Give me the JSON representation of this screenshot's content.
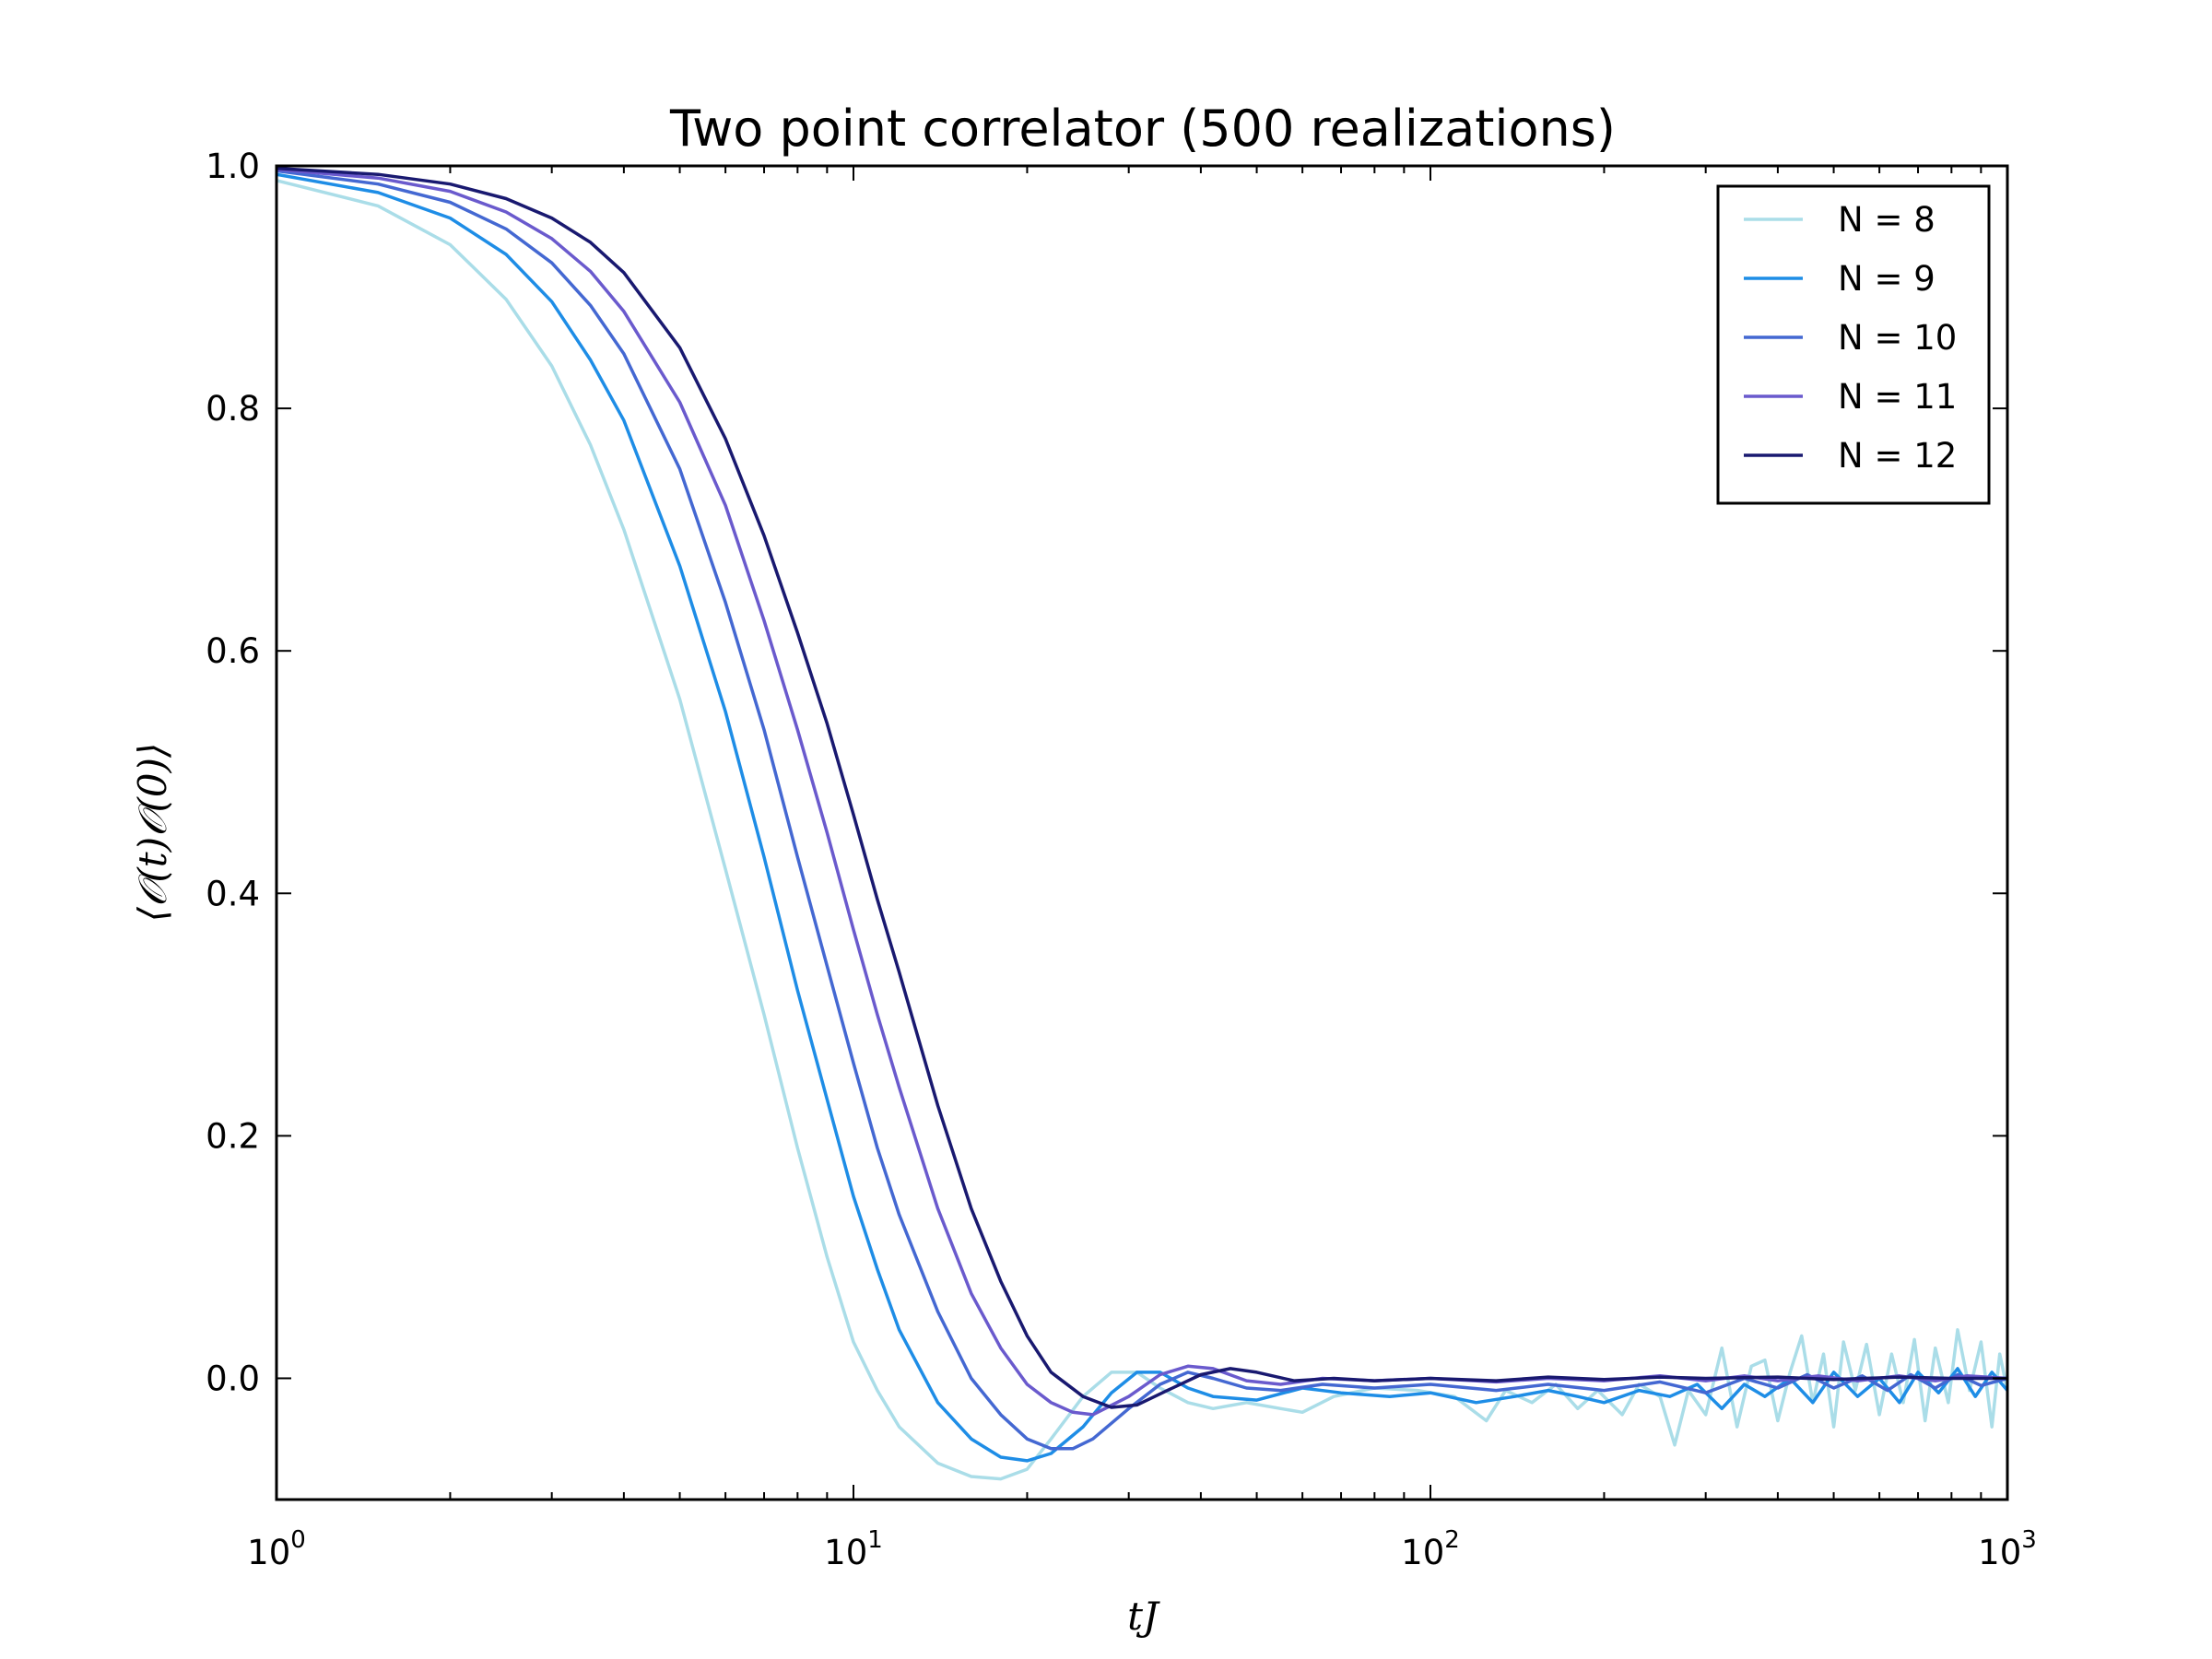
{
  "chart_data": {
    "type": "line",
    "title": "Two point correlator (500 realizations)",
    "xlabel": "tJ",
    "ylabel": "⟨𝒪(t)𝒪(0)⟩",
    "xscale": "log",
    "xlim": [
      1,
      1000
    ],
    "ylim": [
      -0.1,
      1.0
    ],
    "xticks": [
      {
        "value": 1,
        "base": "10",
        "exp": "0"
      },
      {
        "value": 10,
        "base": "10",
        "exp": "1"
      },
      {
        "value": 100,
        "base": "10",
        "exp": "2"
      },
      {
        "value": 1000,
        "base": "10",
        "exp": "3"
      }
    ],
    "yticks": [
      "0.0",
      "0.2",
      "0.4",
      "0.6",
      "0.8",
      "1.0"
    ],
    "grid": false,
    "legend_position": "top-right",
    "series": [
      {
        "name": "N = 8",
        "color": "#aadde8",
        "points": [
          [
            1,
            0.988
          ],
          [
            1.5,
            0.967
          ],
          [
            2,
            0.935
          ],
          [
            2.5,
            0.89
          ],
          [
            3,
            0.835
          ],
          [
            3.5,
            0.77
          ],
          [
            4,
            0.7
          ],
          [
            5,
            0.56
          ],
          [
            6,
            0.42
          ],
          [
            7,
            0.3
          ],
          [
            8,
            0.19
          ],
          [
            9,
            0.1
          ],
          [
            10,
            0.03
          ],
          [
            11,
            -0.01
          ],
          [
            12,
            -0.04
          ],
          [
            14,
            -0.07
          ],
          [
            16,
            -0.081
          ],
          [
            18,
            -0.083
          ],
          [
            20,
            -0.075
          ],
          [
            22,
            -0.05
          ],
          [
            25,
            -0.015
          ],
          [
            28,
            0.005
          ],
          [
            31,
            0.005
          ],
          [
            34,
            -0.008
          ],
          [
            38,
            -0.02
          ],
          [
            42,
            -0.025
          ],
          [
            48,
            -0.02
          ],
          [
            55,
            -0.025
          ],
          [
            60,
            -0.028
          ],
          [
            68,
            -0.015
          ],
          [
            80,
            -0.008
          ],
          [
            95,
            -0.01
          ],
          [
            110,
            -0.015
          ],
          [
            125,
            -0.035
          ],
          [
            135,
            -0.01
          ],
          [
            150,
            -0.02
          ],
          [
            165,
            -0.005
          ],
          [
            180,
            -0.025
          ],
          [
            195,
            -0.01
          ],
          [
            215,
            -0.03
          ],
          [
            230,
            -0.005
          ],
          [
            250,
            -0.015
          ],
          [
            265,
            -0.055
          ],
          [
            280,
            -0.01
          ],
          [
            300,
            -0.03
          ],
          [
            320,
            0.025
          ],
          [
            340,
            -0.04
          ],
          [
            360,
            0.01
          ],
          [
            380,
            0.015
          ],
          [
            400,
            -0.035
          ],
          [
            420,
            0.005
          ],
          [
            440,
            0.035
          ],
          [
            460,
            -0.02
          ],
          [
            480,
            0.02
          ],
          [
            500,
            -0.04
          ],
          [
            520,
            0.03
          ],
          [
            545,
            -0.01
          ],
          [
            570,
            0.028
          ],
          [
            600,
            -0.03
          ],
          [
            630,
            0.02
          ],
          [
            660,
            -0.02
          ],
          [
            690,
            0.032
          ],
          [
            720,
            -0.035
          ],
          [
            750,
            0.025
          ],
          [
            790,
            -0.02
          ],
          [
            820,
            0.04
          ],
          [
            860,
            -0.01
          ],
          [
            900,
            0.03
          ],
          [
            940,
            -0.04
          ],
          [
            970,
            0.02
          ],
          [
            1000,
            -0.01
          ]
        ]
      },
      {
        "name": "N = 9",
        "color": "#1e8de6",
        "points": [
          [
            1,
            0.993
          ],
          [
            1.5,
            0.978
          ],
          [
            2,
            0.957
          ],
          [
            2.5,
            0.927
          ],
          [
            3,
            0.888
          ],
          [
            3.5,
            0.84
          ],
          [
            4,
            0.79
          ],
          [
            5,
            0.67
          ],
          [
            6,
            0.55
          ],
          [
            7,
            0.43
          ],
          [
            8,
            0.32
          ],
          [
            9,
            0.23
          ],
          [
            10,
            0.15
          ],
          [
            11,
            0.09
          ],
          [
            12,
            0.04
          ],
          [
            14,
            -0.02
          ],
          [
            16,
            -0.05
          ],
          [
            18,
            -0.065
          ],
          [
            20,
            -0.068
          ],
          [
            22,
            -0.062
          ],
          [
            25,
            -0.04
          ],
          [
            28,
            -0.012
          ],
          [
            31,
            0.005
          ],
          [
            34,
            0.005
          ],
          [
            38,
            -0.008
          ],
          [
            42,
            -0.015
          ],
          [
            50,
            -0.018
          ],
          [
            60,
            -0.008
          ],
          [
            70,
            -0.012
          ],
          [
            85,
            -0.015
          ],
          [
            100,
            -0.012
          ],
          [
            120,
            -0.02
          ],
          [
            140,
            -0.015
          ],
          [
            160,
            -0.01
          ],
          [
            180,
            -0.015
          ],
          [
            200,
            -0.02
          ],
          [
            230,
            -0.01
          ],
          [
            260,
            -0.015
          ],
          [
            290,
            -0.005
          ],
          [
            320,
            -0.025
          ],
          [
            350,
            -0.005
          ],
          [
            380,
            -0.015
          ],
          [
            420,
            0.0
          ],
          [
            460,
            -0.02
          ],
          [
            500,
            0.005
          ],
          [
            550,
            -0.015
          ],
          [
            600,
            0.0
          ],
          [
            650,
            -0.02
          ],
          [
            700,
            0.005
          ],
          [
            760,
            -0.012
          ],
          [
            820,
            0.008
          ],
          [
            880,
            -0.015
          ],
          [
            940,
            0.005
          ],
          [
            1000,
            -0.01
          ]
        ]
      },
      {
        "name": "N = 10",
        "color": "#4468d2",
        "points": [
          [
            1,
            0.996
          ],
          [
            1.5,
            0.985
          ],
          [
            2,
            0.97
          ],
          [
            2.5,
            0.948
          ],
          [
            3,
            0.92
          ],
          [
            3.5,
            0.885
          ],
          [
            4,
            0.845
          ],
          [
            5,
            0.75
          ],
          [
            6,
            0.64
          ],
          [
            7,
            0.535
          ],
          [
            8,
            0.43
          ],
          [
            9,
            0.34
          ],
          [
            10,
            0.26
          ],
          [
            11,
            0.19
          ],
          [
            12,
            0.135
          ],
          [
            14,
            0.055
          ],
          [
            16,
            0.0
          ],
          [
            18,
            -0.03
          ],
          [
            20,
            -0.05
          ],
          [
            22,
            -0.058
          ],
          [
            24,
            -0.058
          ],
          [
            26,
            -0.05
          ],
          [
            30,
            -0.025
          ],
          [
            34,
            -0.005
          ],
          [
            38,
            0.005
          ],
          [
            42,
            0.0
          ],
          [
            48,
            -0.008
          ],
          [
            55,
            -0.01
          ],
          [
            65,
            -0.005
          ],
          [
            80,
            -0.008
          ],
          [
            100,
            -0.005
          ],
          [
            130,
            -0.01
          ],
          [
            160,
            -0.005
          ],
          [
            200,
            -0.01
          ],
          [
            250,
            -0.003
          ],
          [
            300,
            -0.012
          ],
          [
            350,
            0.0
          ],
          [
            400,
            -0.008
          ],
          [
            450,
            0.003
          ],
          [
            500,
            -0.008
          ],
          [
            560,
            0.002
          ],
          [
            620,
            -0.01
          ],
          [
            680,
            0.003
          ],
          [
            750,
            -0.008
          ],
          [
            820,
            0.003
          ],
          [
            900,
            -0.006
          ],
          [
            1000,
            0.0
          ]
        ]
      },
      {
        "name": "N = 11",
        "color": "#6a5acd",
        "points": [
          [
            1,
            0.997
          ],
          [
            1.5,
            0.99
          ],
          [
            2,
            0.979
          ],
          [
            2.5,
            0.962
          ],
          [
            3,
            0.94
          ],
          [
            3.5,
            0.913
          ],
          [
            4,
            0.88
          ],
          [
            5,
            0.805
          ],
          [
            6,
            0.72
          ],
          [
            7,
            0.625
          ],
          [
            8,
            0.535
          ],
          [
            9,
            0.45
          ],
          [
            10,
            0.37
          ],
          [
            11,
            0.3
          ],
          [
            12,
            0.24
          ],
          [
            14,
            0.14
          ],
          [
            16,
            0.07
          ],
          [
            18,
            0.025
          ],
          [
            20,
            -0.005
          ],
          [
            22,
            -0.02
          ],
          [
            24,
            -0.028
          ],
          [
            26,
            -0.03
          ],
          [
            30,
            -0.015
          ],
          [
            34,
            0.003
          ],
          [
            38,
            0.01
          ],
          [
            42,
            0.008
          ],
          [
            48,
            -0.002
          ],
          [
            55,
            -0.005
          ],
          [
            65,
            0.0
          ],
          [
            80,
            -0.002
          ],
          [
            100,
            0.0
          ],
          [
            130,
            -0.003
          ],
          [
            160,
            0.0
          ],
          [
            200,
            -0.002
          ],
          [
            250,
            0.002
          ],
          [
            300,
            -0.002
          ],
          [
            350,
            0.002
          ],
          [
            400,
            -0.002
          ],
          [
            470,
            0.002
          ],
          [
            550,
            -0.002
          ],
          [
            650,
            0.002
          ],
          [
            750,
            -0.002
          ],
          [
            850,
            0.002
          ],
          [
            1000,
            0.0
          ]
        ]
      },
      {
        "name": "N = 12",
        "color": "#191970",
        "points": [
          [
            1,
            0.998
          ],
          [
            1.5,
            0.993
          ],
          [
            2,
            0.985
          ],
          [
            2.5,
            0.973
          ],
          [
            3,
            0.957
          ],
          [
            3.5,
            0.937
          ],
          [
            4,
            0.912
          ],
          [
            5,
            0.85
          ],
          [
            6,
            0.775
          ],
          [
            7,
            0.695
          ],
          [
            8,
            0.615
          ],
          [
            9,
            0.54
          ],
          [
            10,
            0.465
          ],
          [
            11,
            0.395
          ],
          [
            12,
            0.335
          ],
          [
            14,
            0.225
          ],
          [
            16,
            0.14
          ],
          [
            18,
            0.08
          ],
          [
            20,
            0.035
          ],
          [
            22,
            0.005
          ],
          [
            25,
            -0.015
          ],
          [
            28,
            -0.024
          ],
          [
            31,
            -0.022
          ],
          [
            35,
            -0.01
          ],
          [
            40,
            0.003
          ],
          [
            45,
            0.008
          ],
          [
            50,
            0.005
          ],
          [
            58,
            -0.002
          ],
          [
            68,
            0.0
          ],
          [
            80,
            -0.002
          ],
          [
            100,
            0.0
          ],
          [
            130,
            -0.002
          ],
          [
            160,
            0.001
          ],
          [
            200,
            -0.001
          ],
          [
            250,
            0.001
          ],
          [
            300,
            0.0
          ],
          [
            400,
            0.001
          ],
          [
            500,
            -0.001
          ],
          [
            650,
            0.001
          ],
          [
            800,
            0.0
          ],
          [
            1000,
            0.0
          ]
        ]
      }
    ]
  }
}
